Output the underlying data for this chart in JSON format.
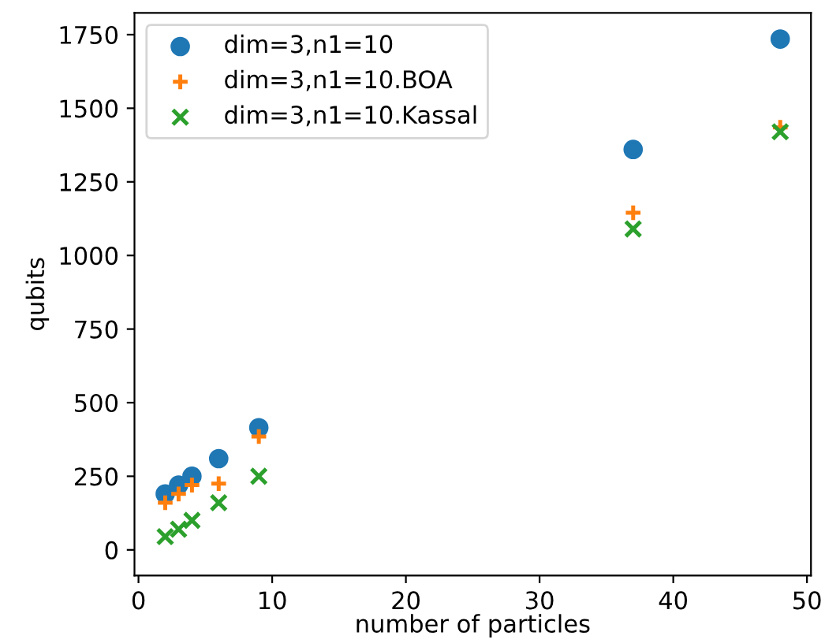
{
  "chart_data": {
    "type": "scatter",
    "xlabel": "number of particles",
    "ylabel": "qubits",
    "x": [
      2,
      3,
      4,
      6,
      9,
      37,
      48
    ],
    "series": [
      {
        "name": "dim=3,n1=10",
        "color": "#1f77b4",
        "marker": "circle",
        "values": [
          190,
          220,
          250,
          310,
          415,
          1360,
          1735
        ]
      },
      {
        "name": "dim=3,n1=10.BOA",
        "color": "#ff7f0e",
        "marker": "plus",
        "values": [
          160,
          190,
          220,
          225,
          385,
          1145,
          1435
        ]
      },
      {
        "name": "dim=3,n1=10.Kassal",
        "color": "#2ca02c",
        "marker": "cross",
        "values": [
          45,
          70,
          100,
          160,
          250,
          1090,
          1420
        ]
      }
    ],
    "xlim": [
      -0.3,
      50.3
    ],
    "xticks": [
      0,
      10,
      20,
      30,
      40,
      50
    ],
    "ylim": [
      -87,
      1824
    ],
    "yticks": [
      0,
      250,
      500,
      750,
      1000,
      1250,
      1500,
      1750
    ],
    "grid": false,
    "legend": "top left"
  }
}
